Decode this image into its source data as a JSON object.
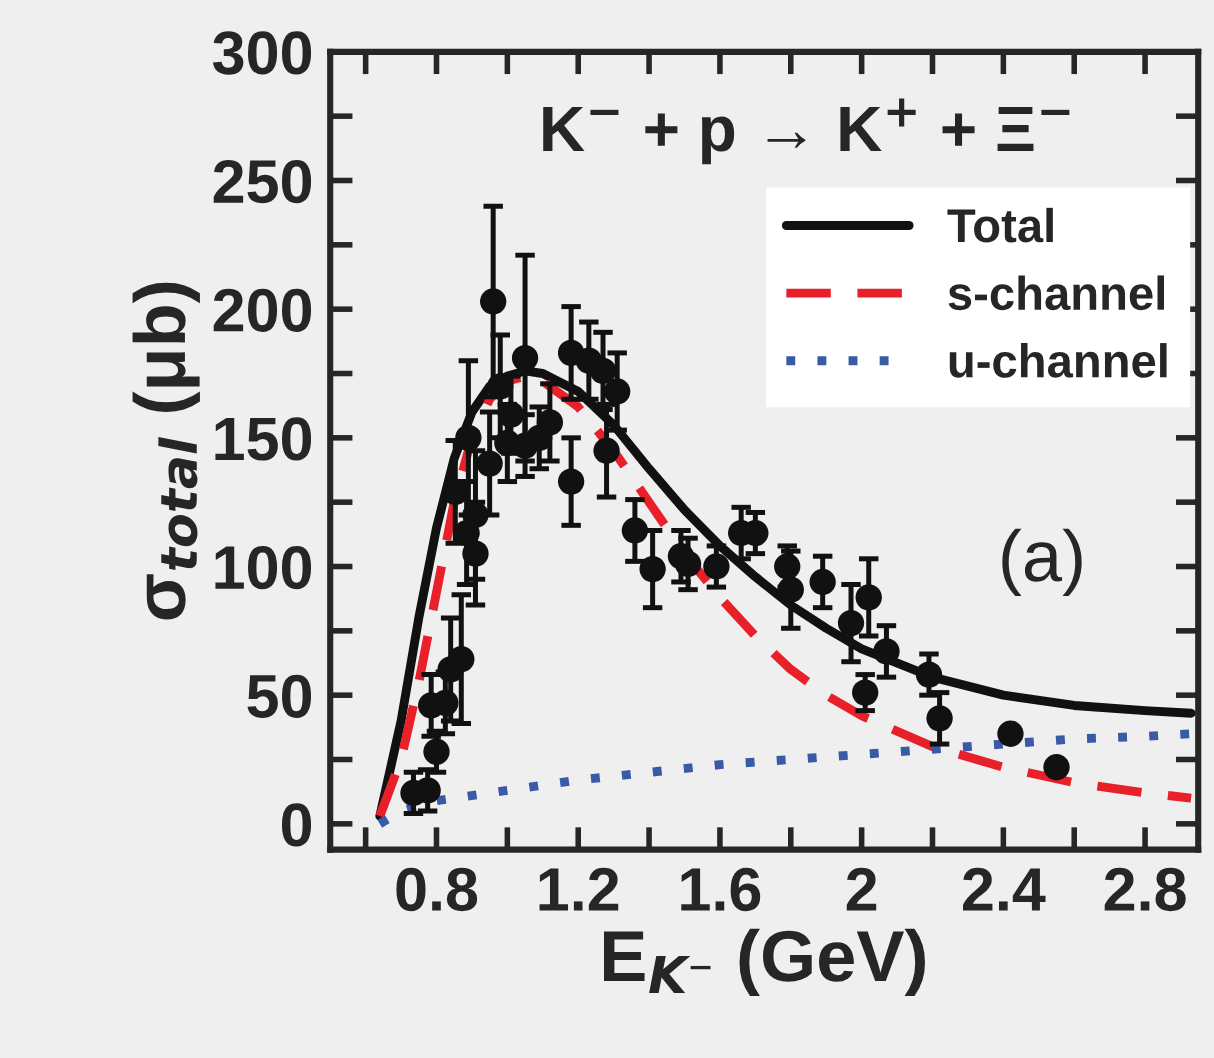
{
  "chart_data": {
    "type": "scatter",
    "xlabel": "E$_{K⁻}$ (GeV)",
    "ylabel": "σ$_{total}$ (μb)",
    "annotations": [
      "K$^{−}$ + p → K$^{+}$ + Ξ$^{−}$",
      "(a)"
    ],
    "xlim": [
      0.5,
      2.95
    ],
    "ylim": [
      -10,
      300
    ],
    "xticks": [
      {
        "value": 0.6,
        "label": null
      },
      0.8,
      {
        "value": 1.0,
        "label": null
      },
      1.2,
      {
        "value": 1.4,
        "label": null
      },
      1.6,
      {
        "value": 1.8,
        "label": null
      },
      2,
      {
        "value": 2.2,
        "label": null
      },
      2.4,
      {
        "value": 2.6,
        "label": null
      },
      2.8
    ],
    "yticks": [
      0,
      {
        "value": 25,
        "label": null
      },
      50,
      {
        "value": 75,
        "label": null
      },
      100,
      {
        "value": 125,
        "label": null
      },
      150,
      {
        "value": 175,
        "label": null
      },
      200,
      {
        "value": 225,
        "label": null
      },
      250,
      {
        "value": 275,
        "label": null
      },
      300
    ],
    "grid": false,
    "legend": "top right",
    "series": [
      {
        "color": "#111111",
        "marker": "circle",
        "x": [
          0.735,
          0.775,
          0.8,
          0.785,
          0.825,
          0.84,
          0.87,
          0.853,
          0.89,
          0.885,
          0.91,
          0.91,
          0.95,
          0.96,
          0.98,
          1.01,
          1.0,
          1.05,
          1.05,
          1.09,
          1.12,
          1.18,
          1.18,
          1.23,
          1.27,
          1.31,
          1.28,
          1.36,
          1.41,
          1.49,
          1.51,
          1.59,
          1.66,
          1.7,
          1.79,
          1.8,
          1.89,
          1.97,
          2.02,
          2.07,
          2.01,
          2.19,
          2.22,
          2.42,
          2.55
        ],
        "values": [
          12,
          13,
          28,
          46,
          47,
          60,
          64,
          129,
          150,
          113,
          120,
          105,
          140,
          203,
          170,
          159,
          148,
          147,
          181,
          150,
          156,
          133,
          183,
          180,
          176,
          168,
          145,
          114,
          99,
          104,
          101,
          100,
          113,
          113,
          100,
          91,
          94,
          78,
          88,
          67,
          51,
          58,
          41,
          35,
          22
        ],
        "errors": [
          8,
          8,
          8,
          12,
          12,
          20,
          25,
          20,
          30,
          20,
          25,
          20,
          20,
          37,
          20,
          15,
          15,
          12,
          40,
          12,
          15,
          17,
          18,
          15,
          15,
          15,
          18,
          12,
          15,
          10,
          10,
          8,
          10,
          8,
          8,
          15,
          10,
          15,
          15,
          10,
          7,
          8,
          10,
          null,
          null
        ]
      },
      {
        "type": "line",
        "name": "Total",
        "color": "#111111",
        "line_style": "solid",
        "x": [
          0.64,
          0.7,
          0.75,
          0.8,
          0.85,
          0.9,
          0.95,
          1.0,
          1.05,
          1.1,
          1.2,
          1.3,
          1.4,
          1.5,
          1.6,
          1.7,
          1.8,
          1.9,
          2.0,
          2.2,
          2.4,
          2.6,
          2.8,
          2.93
        ],
        "values": [
          3,
          40,
          80,
          115,
          142,
          160,
          170,
          174,
          176,
          175,
          168,
          155,
          138,
          122,
          108,
          96,
          85,
          76,
          68,
          57,
          50,
          46,
          44,
          43
        ]
      },
      {
        "type": "line",
        "name": "s-channel",
        "color": "#e8202a",
        "line_style": "dashed",
        "x": [
          0.64,
          0.7,
          0.75,
          0.8,
          0.85,
          0.9,
          0.95,
          1.0,
          1.05,
          1.1,
          1.2,
          1.3,
          1.4,
          1.5,
          1.6,
          1.7,
          1.8,
          1.9,
          2.0,
          2.2,
          2.4,
          2.6,
          2.8,
          2.93
        ],
        "values": [
          3,
          25,
          55,
          90,
          125,
          150,
          165,
          172,
          174,
          172,
          162,
          145,
          125,
          105,
          88,
          73,
          60,
          50,
          42,
          30,
          22,
          16,
          12,
          10
        ]
      },
      {
        "type": "line",
        "name": "u-channel",
        "color": "#3a5aa8",
        "line_style": "dotted",
        "x": [
          0.64,
          0.7,
          0.8,
          1.0,
          1.2,
          1.4,
          1.6,
          1.8,
          2.0,
          2.2,
          2.4,
          2.6,
          2.8,
          2.93
        ],
        "values": [
          0,
          5,
          9,
          13,
          17,
          20,
          23,
          25,
          27,
          29,
          31,
          33,
          34,
          35
        ]
      }
    ]
  }
}
